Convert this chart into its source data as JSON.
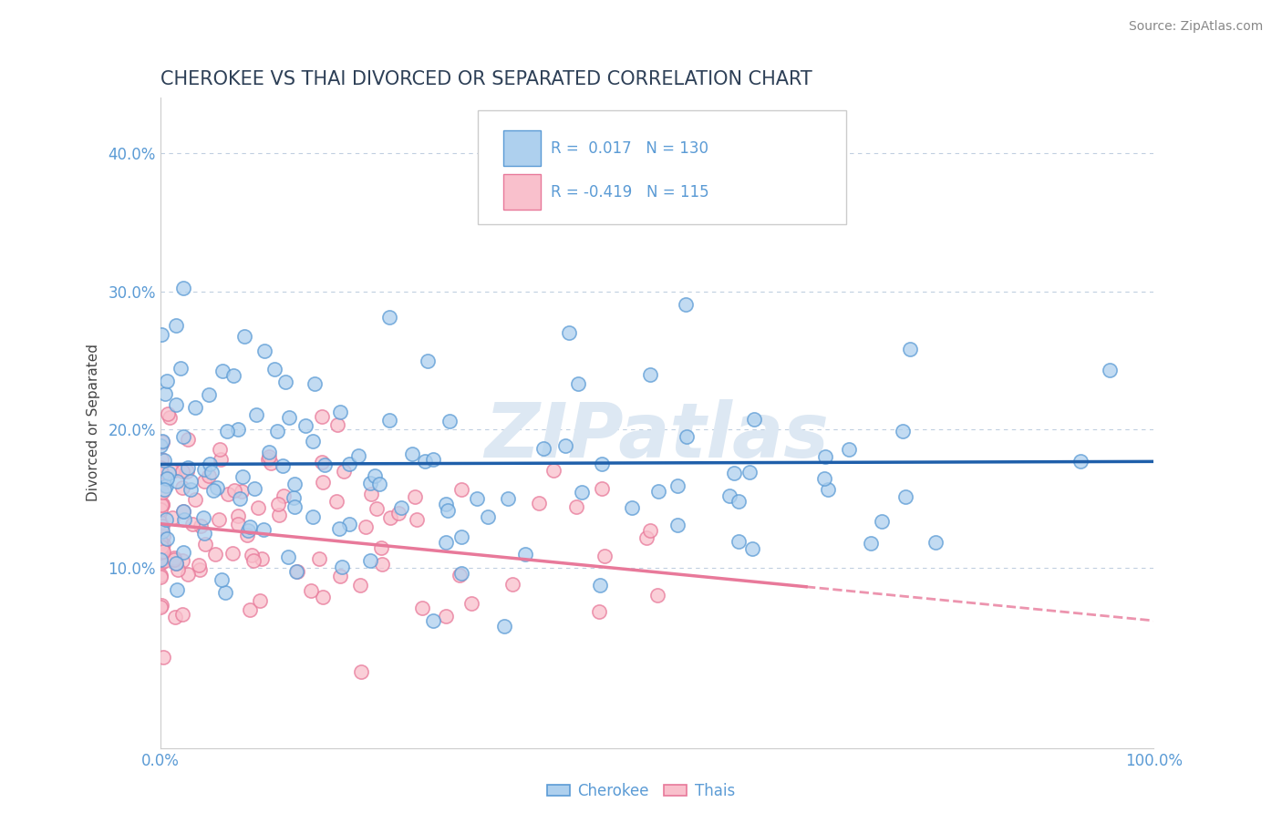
{
  "title": "CHEROKEE VS THAI DIVORCED OR SEPARATED CORRELATION CHART",
  "source_text": "Source: ZipAtlas.com",
  "ylabel": "Divorced or Separated",
  "xlim": [
    0,
    100
  ],
  "ylim": [
    -3,
    44
  ],
  "xticks": [
    0,
    10,
    20,
    30,
    40,
    50,
    60,
    70,
    80,
    90,
    100
  ],
  "xticklabels": [
    "0.0%",
    "",
    "",
    "",
    "",
    "",
    "",
    "",
    "",
    "",
    "100.0%"
  ],
  "yticks": [
    0,
    10,
    20,
    30,
    40
  ],
  "yticklabels": [
    "",
    "10.0%",
    "20.0%",
    "30.0%",
    "40.0%"
  ],
  "title_color": "#2E4057",
  "title_fontsize": 15,
  "axis_color": "#5B9BD5",
  "legend_text_color": "#5B9BD5",
  "legend_label_color": "#333333",
  "watermark_text": "ZIPatlas",
  "watermark_color": "#dde8f3",
  "watermark_fontsize": 60,
  "legend_R1": "R =  0.017",
  "legend_N1": "N = 130",
  "legend_R2": "R = -0.419",
  "legend_N2": "N = 115",
  "cherokee_color": "#aed0ee",
  "thai_color": "#f9c0cc",
  "cherokee_edge": "#5B9BD5",
  "thai_edge": "#e8799a",
  "trend_cherokee_color": "#1f5faa",
  "trend_thai_color": "#e8799a",
  "grid_color": "#c0cfe0",
  "background_color": "#ffffff",
  "cherokee_N": 130,
  "thai_N": 115,
  "cherokee_intercept": 17.5,
  "cherokee_slope": 0.002,
  "thai_intercept": 13.2,
  "thai_slope": -0.07,
  "thai_solid_end": 65,
  "source_color": "#888888",
  "source_fontsize": 10
}
